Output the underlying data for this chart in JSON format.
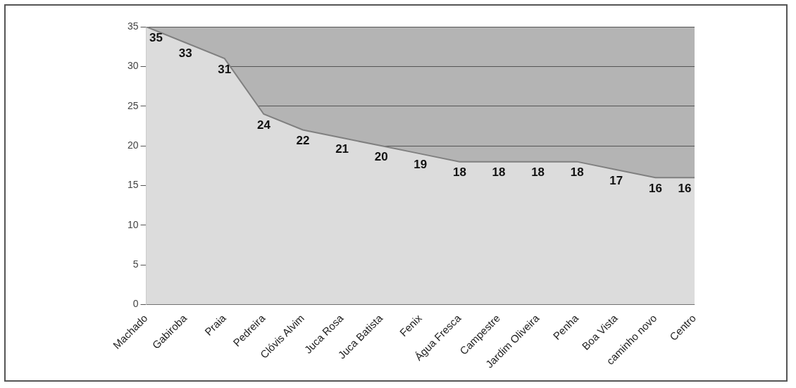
{
  "chart_data": {
    "type": "area",
    "categories": [
      "Machado",
      "Gabiroba",
      "Praia",
      "Pedreira",
      "Clóvis Alvim",
      "Juca Rosa",
      "Juca Batista",
      "Fenix",
      "Água Fresca",
      "Campestre",
      "Jardim Oliveira",
      "Penha",
      "Boa Vista",
      "caminho novo",
      "Centro"
    ],
    "values": [
      35,
      33,
      31,
      24,
      22,
      21,
      20,
      19,
      18,
      18,
      18,
      18,
      17,
      16,
      16
    ],
    "color": "#dcdcdc",
    "ylim": [
      0,
      35
    ],
    "yticks": [
      0,
      5,
      10,
      15,
      20,
      25,
      30,
      35
    ],
    "grid": "y",
    "data_labels": true
  }
}
